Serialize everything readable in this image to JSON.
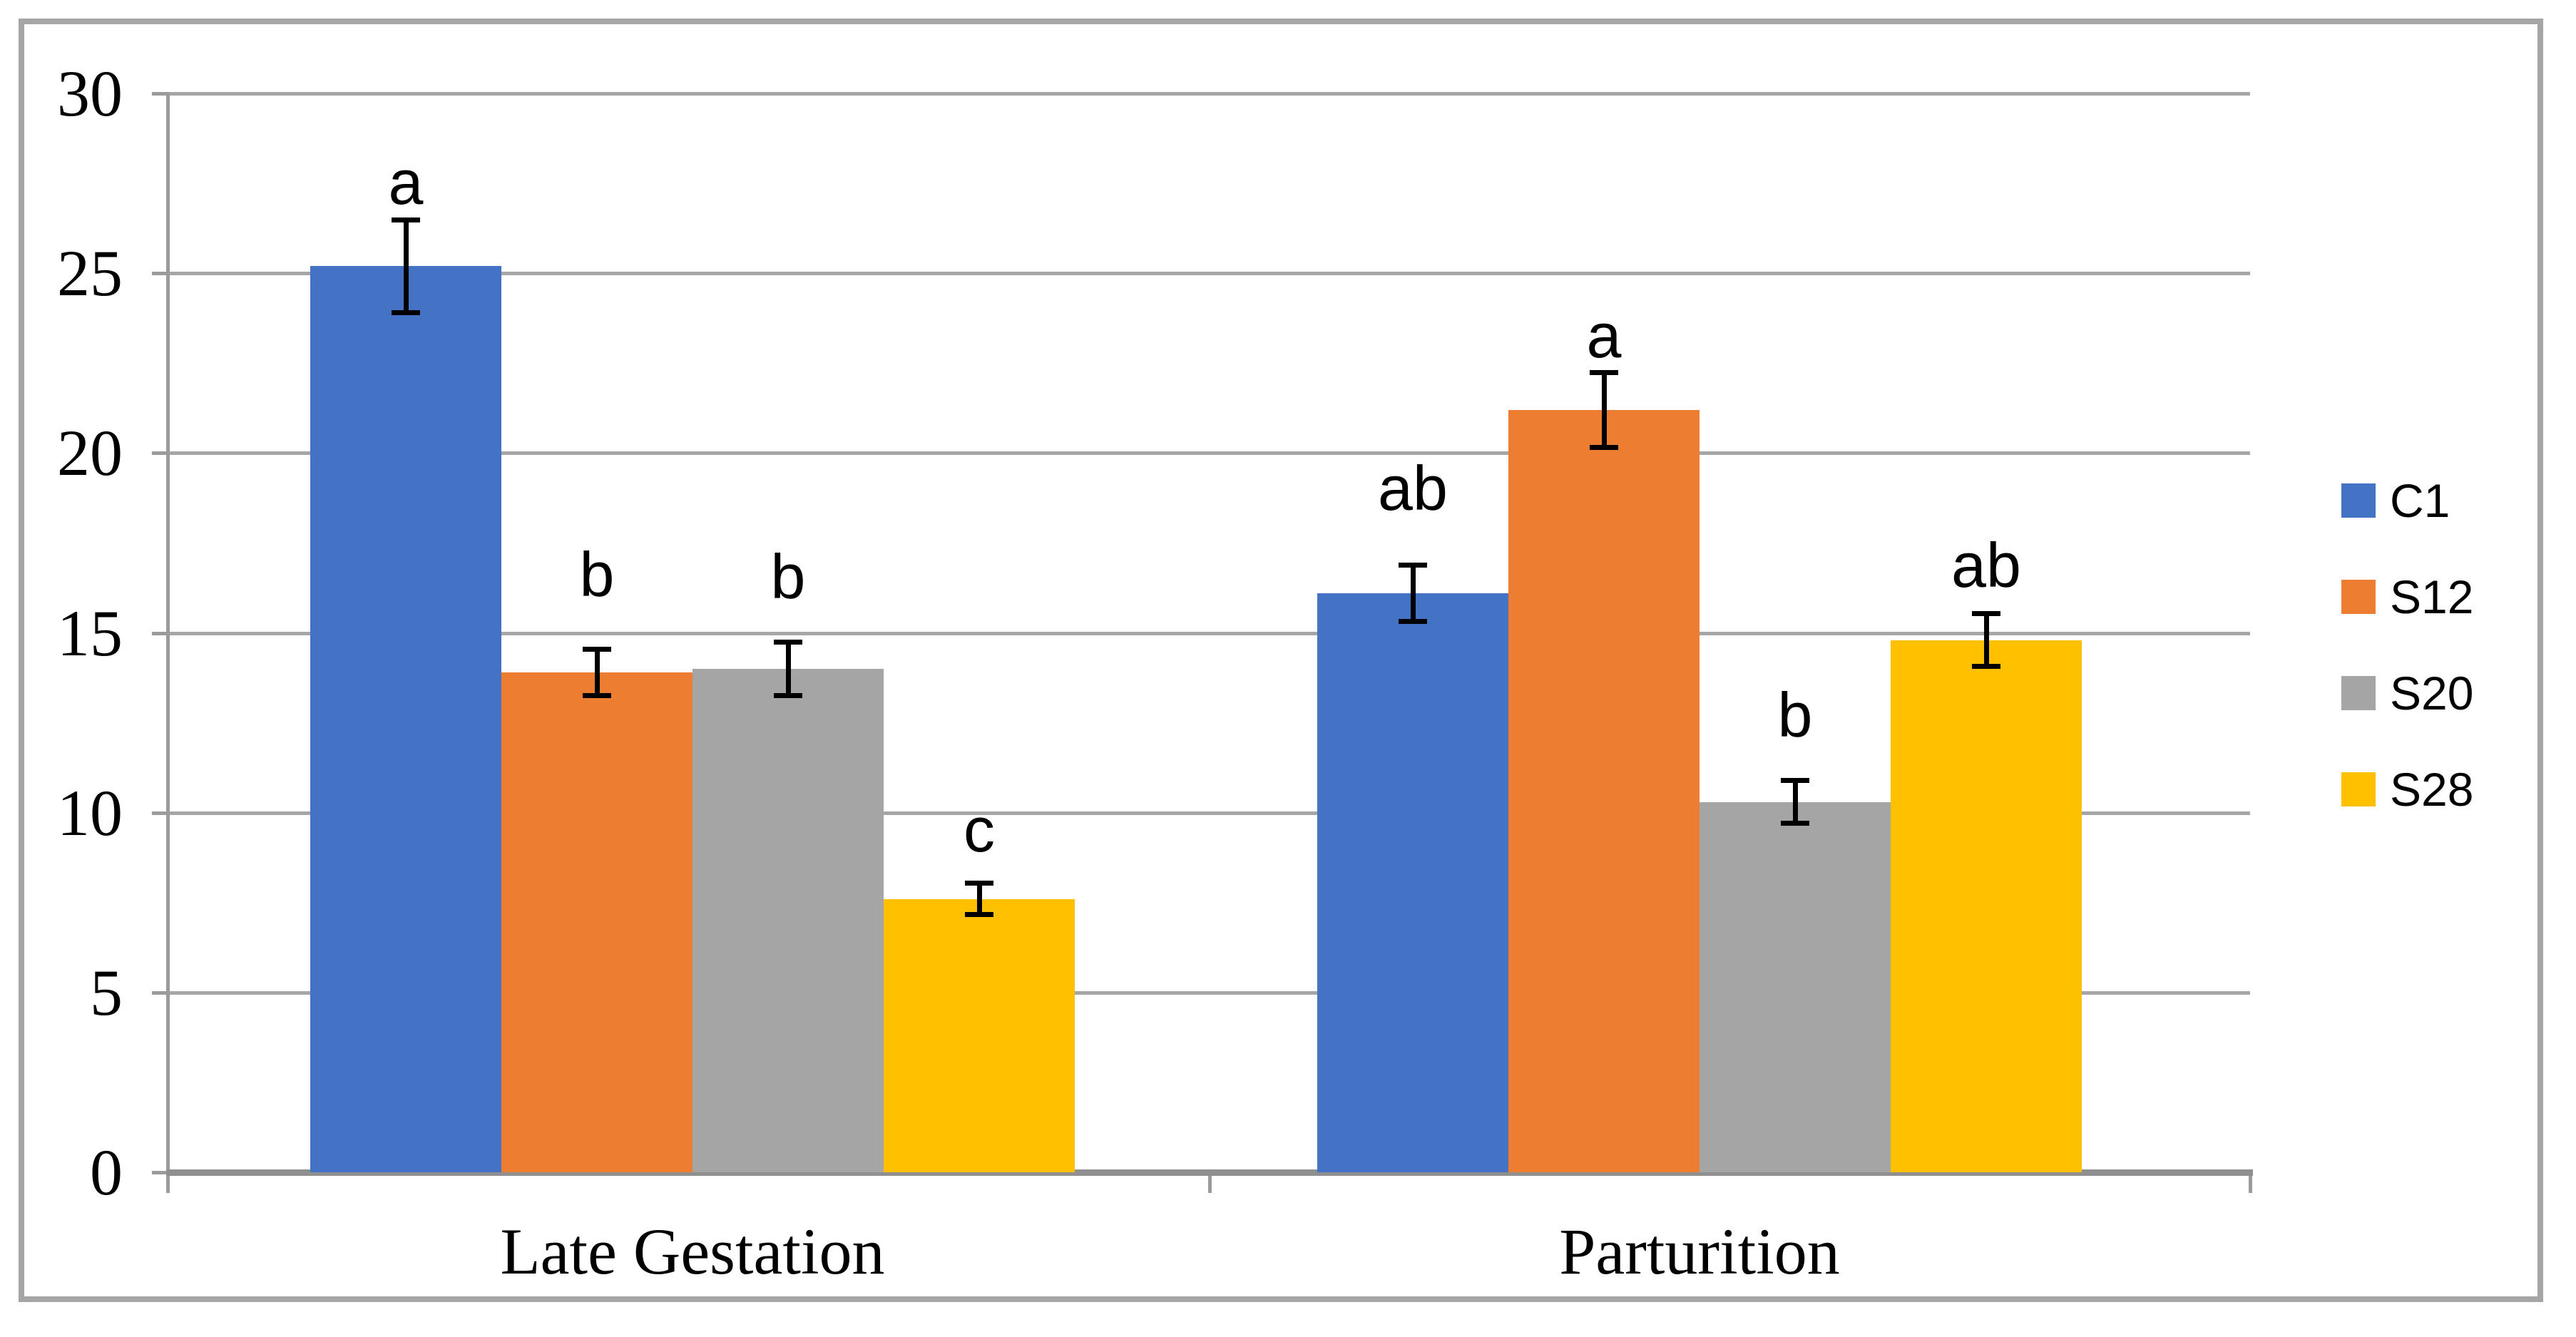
{
  "figure": {
    "background": "#ffffff",
    "border_color": "#a6a6a6"
  },
  "chart_data": {
    "type": "bar",
    "title": "",
    "xlabel": "",
    "ylabel": "",
    "categories": [
      "Late Gestation",
      "Parturition"
    ],
    "series": [
      {
        "name": "C1",
        "color": "#4472c4",
        "values": [
          25.2,
          16.1
        ],
        "errors": [
          1.3,
          0.8
        ],
        "sig_letters": [
          "a",
          "ab"
        ],
        "letter_gaps": [
          0.5,
          1.6
        ]
      },
      {
        "name": "S12",
        "color": "#ed7d31",
        "values": [
          13.9,
          21.2
        ],
        "errors": [
          0.65,
          1.05
        ],
        "sig_letters": [
          "b",
          "a"
        ],
        "letter_gaps": [
          1.55,
          0.5
        ]
      },
      {
        "name": "S20",
        "color": "#a5a5a5",
        "values": [
          14.0,
          10.3
        ],
        "errors": [
          0.75,
          0.6
        ],
        "sig_letters": [
          "b",
          "b"
        ],
        "letter_gaps": [
          1.3,
          1.3
        ]
      },
      {
        "name": "S28",
        "color": "#ffc000",
        "values": [
          7.6,
          14.8
        ],
        "errors": [
          0.45,
          0.75
        ],
        "sig_letters": [
          "c",
          "ab"
        ],
        "letter_gaps": [
          0.95,
          0.8
        ]
      }
    ],
    "ylim": [
      0,
      30
    ],
    "yticks": [
      0,
      5,
      10,
      15,
      20,
      25,
      30
    ],
    "grid": true,
    "error_bars": true,
    "legend_position": "right-middle",
    "gridline_color": "#a6a6a6",
    "axis_color": "#9b9b9b",
    "baseline_color": "#8f8f8f",
    "error_bar_color": "#000000",
    "text_color": "#000000"
  },
  "legend": {
    "items": [
      "C1",
      "S12",
      "S20",
      "S28"
    ]
  }
}
